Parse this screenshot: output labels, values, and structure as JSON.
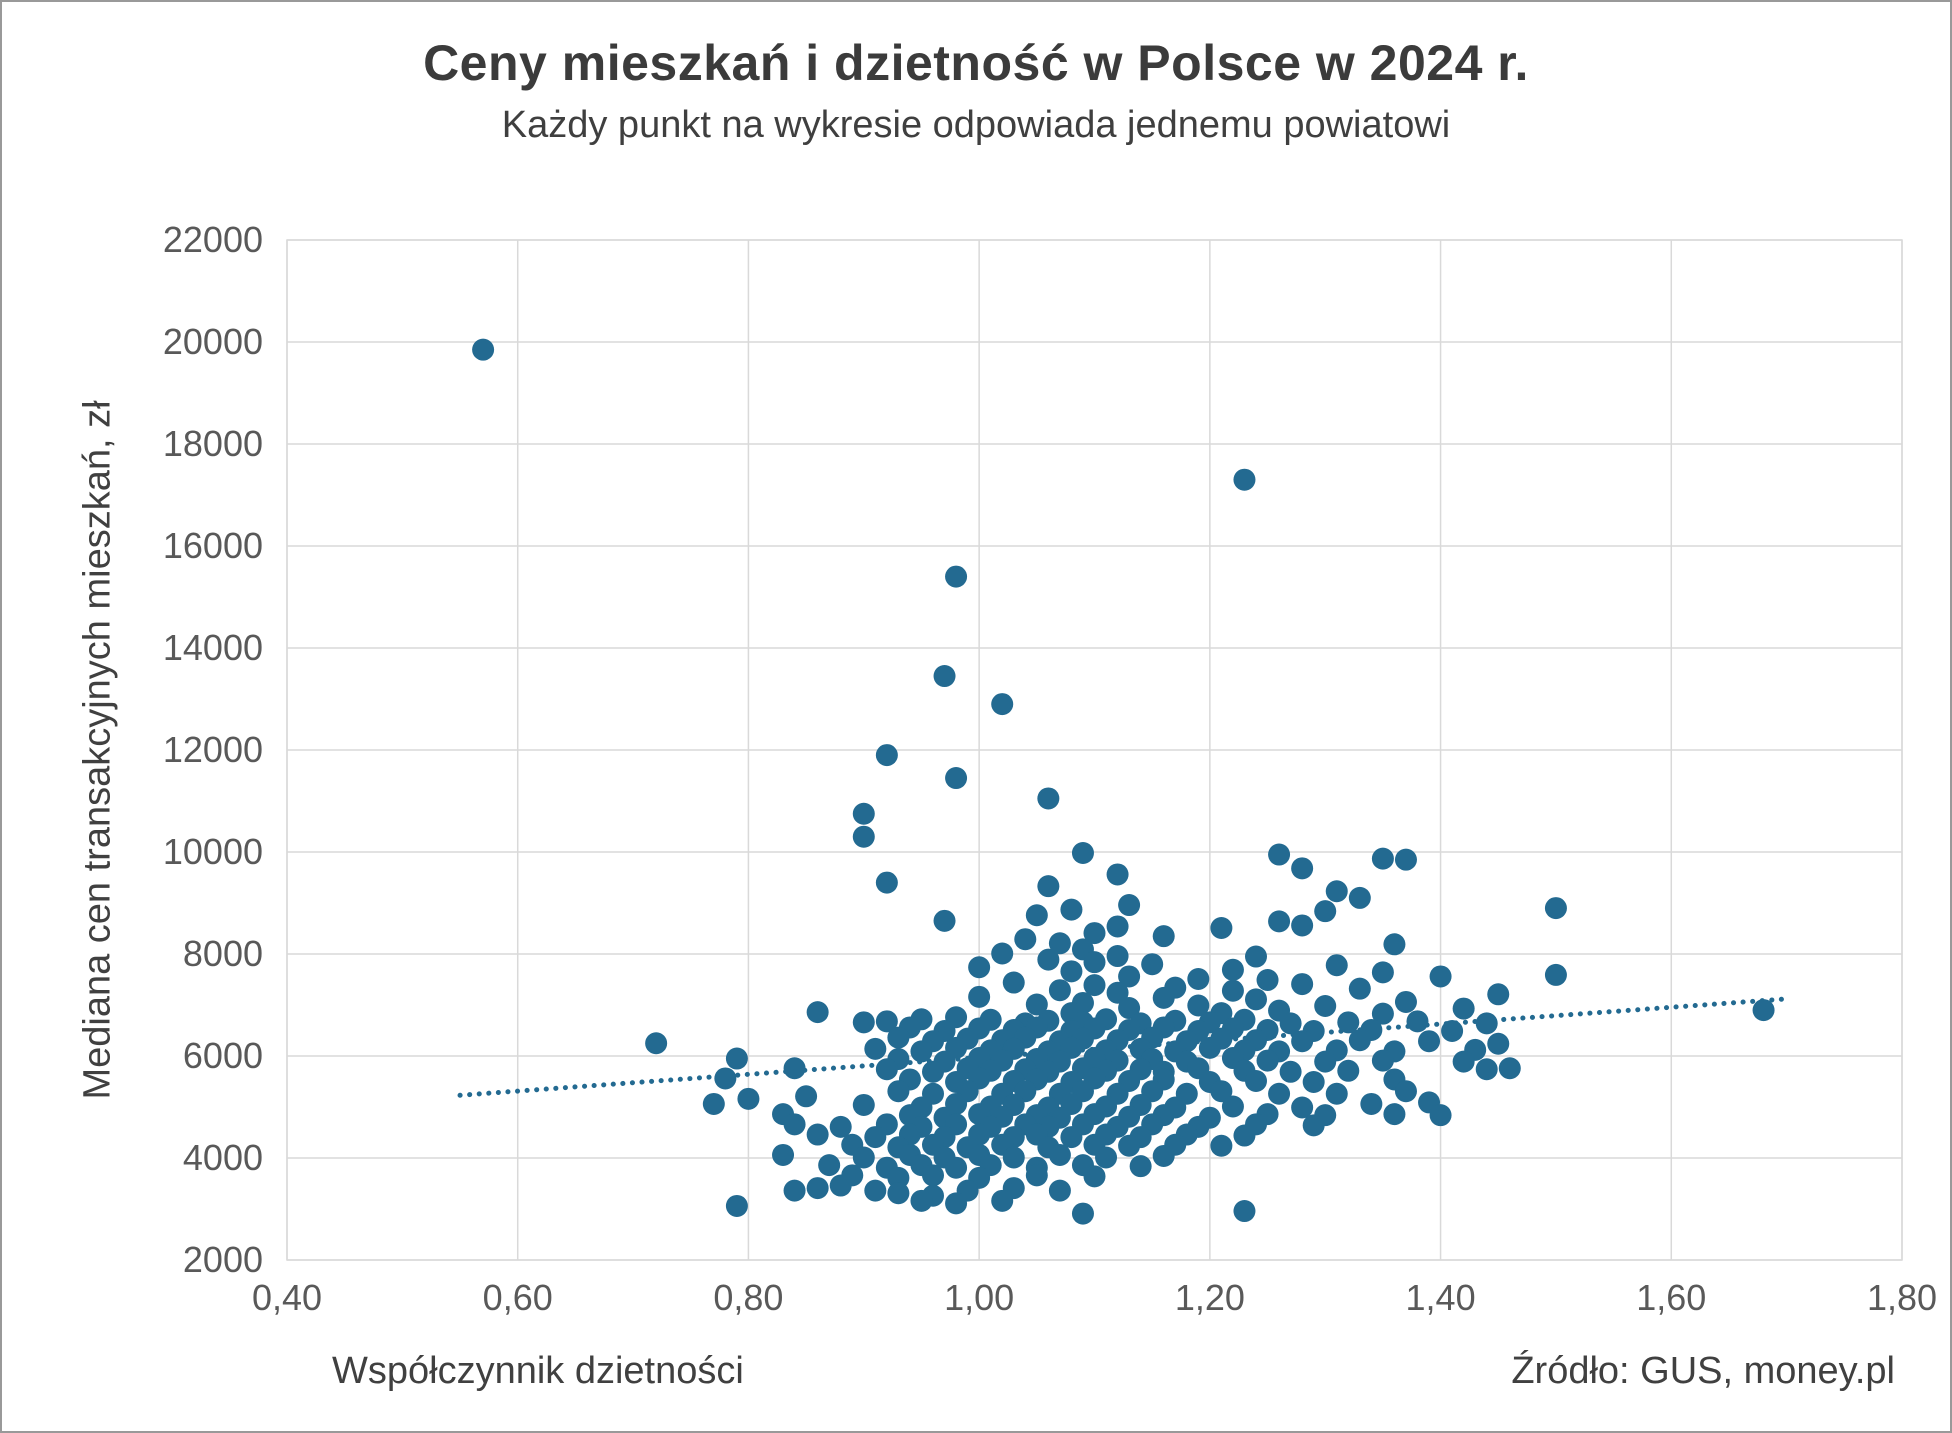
{
  "chart_data": {
    "type": "scatter",
    "title": "Ceny mieszkań i dzietność w Polsce w 2024 r.",
    "subtitle": "Każdy punkt na wykresie odpowiada jednemu powiatowi",
    "xlabel": "Współczynnik dzietności",
    "ylabel": "Mediana cen transakcyjnych mieszkań, zł",
    "source": "Źródło: GUS, money.pl",
    "xlim": [
      0.4,
      1.8
    ],
    "ylim": [
      2000,
      22000
    ],
    "x_ticks": [
      0.4,
      0.6,
      0.8,
      1.0,
      1.2,
      1.4,
      1.6,
      1.8
    ],
    "x_tick_labels": [
      "0,40",
      "0,60",
      "0,80",
      "1,00",
      "1,20",
      "1,40",
      "1,60",
      "1,80"
    ],
    "y_ticks": [
      2000,
      4000,
      6000,
      8000,
      10000,
      12000,
      14000,
      16000,
      18000,
      20000,
      22000
    ],
    "grid": true,
    "legend": false,
    "point_color": "#236a91",
    "grid_color": "#d9d9d9",
    "trendline": {
      "style": "dotted",
      "color": "#236a91",
      "x1": 0.55,
      "y1": 5230,
      "x2": 1.7,
      "y2": 7120
    },
    "points": [
      [
        0.57,
        19850
      ],
      [
        1.23,
        17300
      ],
      [
        0.98,
        15400
      ],
      [
        0.97,
        13450
      ],
      [
        1.02,
        12900
      ],
      [
        0.92,
        11900
      ],
      [
        0.98,
        11450
      ],
      [
        1.06,
        11050
      ],
      [
        0.9,
        10750
      ],
      [
        0.9,
        10300
      ],
      [
        1.09,
        9980
      ],
      [
        1.26,
        9950
      ],
      [
        1.35,
        9870
      ],
      [
        1.37,
        9850
      ],
      [
        1.28,
        9680
      ],
      [
        1.12,
        9560
      ],
      [
        0.92,
        9400
      ],
      [
        1.06,
        9330
      ],
      [
        1.31,
        9230
      ],
      [
        1.33,
        9100
      ],
      [
        1.13,
        8960
      ],
      [
        1.5,
        8900
      ],
      [
        1.08,
        8870
      ],
      [
        1.3,
        8840
      ],
      [
        1.05,
        8760
      ],
      [
        0.97,
        8650
      ],
      [
        1.26,
        8640
      ],
      [
        1.28,
        8560
      ],
      [
        1.12,
        8540
      ],
      [
        1.21,
        8510
      ],
      [
        1.1,
        8410
      ],
      [
        1.16,
        8350
      ],
      [
        1.04,
        8290
      ],
      [
        1.07,
        8210
      ],
      [
        1.36,
        8190
      ],
      [
        1.09,
        8090
      ],
      [
        1.02,
        8010
      ],
      [
        1.12,
        7960
      ],
      [
        1.24,
        7950
      ],
      [
        1.06,
        7890
      ],
      [
        1.1,
        7840
      ],
      [
        1.15,
        7800
      ],
      [
        1.31,
        7780
      ],
      [
        1.0,
        7740
      ],
      [
        1.22,
        7690
      ],
      [
        1.08,
        7660
      ],
      [
        1.35,
        7640
      ],
      [
        1.5,
        7590
      ],
      [
        1.13,
        7560
      ],
      [
        1.4,
        7560
      ],
      [
        1.19,
        7510
      ],
      [
        1.25,
        7490
      ],
      [
        1.03,
        7440
      ],
      [
        1.28,
        7410
      ],
      [
        1.1,
        7390
      ],
      [
        1.17,
        7340
      ],
      [
        1.33,
        7320
      ],
      [
        1.07,
        7290
      ],
      [
        1.22,
        7280
      ],
      [
        1.45,
        7210
      ],
      [
        1.12,
        7240
      ],
      [
        1.0,
        7160
      ],
      [
        1.16,
        7140
      ],
      [
        1.24,
        7110
      ],
      [
        1.37,
        7060
      ],
      [
        1.09,
        7040
      ],
      [
        1.05,
        7010
      ],
      [
        1.19,
        6990
      ],
      [
        1.3,
        6980
      ],
      [
        1.13,
        6940
      ],
      [
        1.42,
        6930
      ],
      [
        1.68,
        6900
      ],
      [
        1.26,
        6890
      ],
      [
        0.86,
        6860
      ],
      [
        1.08,
        6840
      ],
      [
        1.21,
        6840
      ],
      [
        1.35,
        6830
      ],
      [
        0.9,
        6660
      ],
      [
        0.92,
        6680
      ],
      [
        0.95,
        6720
      ],
      [
        0.98,
        6760
      ],
      [
        1.01,
        6710
      ],
      [
        1.04,
        6640
      ],
      [
        1.06,
        6690
      ],
      [
        1.09,
        6660
      ],
      [
        1.11,
        6720
      ],
      [
        1.14,
        6640
      ],
      [
        1.17,
        6690
      ],
      [
        1.2,
        6660
      ],
      [
        1.23,
        6710
      ],
      [
        1.27,
        6640
      ],
      [
        1.32,
        6660
      ],
      [
        1.38,
        6680
      ],
      [
        1.44,
        6640
      ],
      [
        0.94,
        6560
      ],
      [
        0.97,
        6490
      ],
      [
        1.0,
        6540
      ],
      [
        1.03,
        6510
      ],
      [
        1.05,
        6560
      ],
      [
        1.08,
        6490
      ],
      [
        1.1,
        6540
      ],
      [
        1.13,
        6510
      ],
      [
        1.16,
        6560
      ],
      [
        1.19,
        6490
      ],
      [
        1.22,
        6540
      ],
      [
        1.25,
        6510
      ],
      [
        1.29,
        6490
      ],
      [
        1.34,
        6510
      ],
      [
        1.41,
        6490
      ],
      [
        0.72,
        6250
      ],
      [
        0.93,
        6360
      ],
      [
        0.96,
        6290
      ],
      [
        0.99,
        6340
      ],
      [
        1.02,
        6310
      ],
      [
        1.04,
        6360
      ],
      [
        1.07,
        6290
      ],
      [
        1.09,
        6340
      ],
      [
        1.12,
        6310
      ],
      [
        1.15,
        6360
      ],
      [
        1.18,
        6290
      ],
      [
        1.21,
        6340
      ],
      [
        1.24,
        6310
      ],
      [
        1.28,
        6290
      ],
      [
        1.33,
        6310
      ],
      [
        1.39,
        6290
      ],
      [
        1.45,
        6240
      ],
      [
        0.91,
        6140
      ],
      [
        0.95,
        6090
      ],
      [
        0.98,
        6160
      ],
      [
        1.01,
        6110
      ],
      [
        1.03,
        6140
      ],
      [
        1.06,
        6090
      ],
      [
        1.08,
        6160
      ],
      [
        1.11,
        6110
      ],
      [
        1.14,
        6140
      ],
      [
        1.17,
        6090
      ],
      [
        1.2,
        6160
      ],
      [
        1.23,
        6110
      ],
      [
        1.26,
        6090
      ],
      [
        1.31,
        6110
      ],
      [
        1.36,
        6090
      ],
      [
        1.43,
        6120
      ],
      [
        0.79,
        5950
      ],
      [
        0.93,
        5940
      ],
      [
        0.97,
        5890
      ],
      [
        1.0,
        5960
      ],
      [
        1.02,
        5910
      ],
      [
        1.05,
        5940
      ],
      [
        1.07,
        5890
      ],
      [
        1.1,
        5960
      ],
      [
        1.12,
        5910
      ],
      [
        1.15,
        5940
      ],
      [
        1.18,
        5890
      ],
      [
        1.22,
        5960
      ],
      [
        1.25,
        5910
      ],
      [
        1.3,
        5890
      ],
      [
        1.35,
        5910
      ],
      [
        1.42,
        5890
      ],
      [
        0.84,
        5760
      ],
      [
        0.92,
        5740
      ],
      [
        0.96,
        5690
      ],
      [
        0.99,
        5760
      ],
      [
        1.01,
        5710
      ],
      [
        1.04,
        5740
      ],
      [
        1.06,
        5690
      ],
      [
        1.09,
        5760
      ],
      [
        1.11,
        5710
      ],
      [
        1.14,
        5740
      ],
      [
        1.16,
        5690
      ],
      [
        1.19,
        5760
      ],
      [
        1.23,
        5710
      ],
      [
        1.27,
        5690
      ],
      [
        1.32,
        5710
      ],
      [
        1.44,
        5740
      ],
      [
        1.46,
        5760
      ],
      [
        0.78,
        5560
      ],
      [
        0.94,
        5540
      ],
      [
        0.98,
        5490
      ],
      [
        1.0,
        5560
      ],
      [
        1.03,
        5510
      ],
      [
        1.05,
        5540
      ],
      [
        1.08,
        5490
      ],
      [
        1.1,
        5560
      ],
      [
        1.13,
        5510
      ],
      [
        1.16,
        5540
      ],
      [
        1.2,
        5490
      ],
      [
        1.24,
        5510
      ],
      [
        1.29,
        5490
      ],
      [
        1.36,
        5540
      ],
      [
        0.8,
        5160
      ],
      [
        0.85,
        5210
      ],
      [
        0.93,
        5310
      ],
      [
        0.96,
        5260
      ],
      [
        0.99,
        5310
      ],
      [
        1.02,
        5260
      ],
      [
        1.04,
        5310
      ],
      [
        1.07,
        5260
      ],
      [
        1.09,
        5310
      ],
      [
        1.12,
        5260
      ],
      [
        1.15,
        5310
      ],
      [
        1.18,
        5260
      ],
      [
        1.21,
        5310
      ],
      [
        1.26,
        5260
      ],
      [
        1.31,
        5260
      ],
      [
        1.37,
        5310
      ],
      [
        0.77,
        5060
      ],
      [
        0.9,
        5040
      ],
      [
        0.95,
        4990
      ],
      [
        0.98,
        5060
      ],
      [
        1.01,
        5010
      ],
      [
        1.03,
        5040
      ],
      [
        1.06,
        4990
      ],
      [
        1.08,
        5060
      ],
      [
        1.11,
        5010
      ],
      [
        1.14,
        5040
      ],
      [
        1.17,
        4990
      ],
      [
        1.22,
        5010
      ],
      [
        1.28,
        4990
      ],
      [
        1.34,
        5060
      ],
      [
        1.39,
        5090
      ],
      [
        0.83,
        4860
      ],
      [
        0.94,
        4840
      ],
      [
        0.97,
        4790
      ],
      [
        1.0,
        4860
      ],
      [
        1.02,
        4810
      ],
      [
        1.05,
        4840
      ],
      [
        1.07,
        4790
      ],
      [
        1.1,
        4860
      ],
      [
        1.13,
        4810
      ],
      [
        1.16,
        4840
      ],
      [
        1.2,
        4790
      ],
      [
        1.25,
        4860
      ],
      [
        1.3,
        4840
      ],
      [
        1.36,
        4860
      ],
      [
        1.4,
        4840
      ],
      [
        0.84,
        4660
      ],
      [
        0.88,
        4610
      ],
      [
        0.92,
        4660
      ],
      [
        0.95,
        4610
      ],
      [
        0.98,
        4660
      ],
      [
        1.01,
        4610
      ],
      [
        1.04,
        4660
      ],
      [
        1.06,
        4610
      ],
      [
        1.09,
        4660
      ],
      [
        1.12,
        4610
      ],
      [
        1.15,
        4660
      ],
      [
        1.19,
        4610
      ],
      [
        1.24,
        4660
      ],
      [
        1.29,
        4640
      ],
      [
        0.86,
        4460
      ],
      [
        0.91,
        4410
      ],
      [
        0.94,
        4460
      ],
      [
        0.97,
        4410
      ],
      [
        1.0,
        4460
      ],
      [
        1.03,
        4410
      ],
      [
        1.05,
        4460
      ],
      [
        1.08,
        4410
      ],
      [
        1.11,
        4460
      ],
      [
        1.14,
        4410
      ],
      [
        1.18,
        4460
      ],
      [
        1.23,
        4440
      ],
      [
        0.89,
        4260
      ],
      [
        0.93,
        4210
      ],
      [
        0.96,
        4260
      ],
      [
        0.99,
        4210
      ],
      [
        1.02,
        4260
      ],
      [
        1.06,
        4210
      ],
      [
        1.1,
        4260
      ],
      [
        1.13,
        4240
      ],
      [
        1.17,
        4260
      ],
      [
        1.21,
        4240
      ],
      [
        0.83,
        4060
      ],
      [
        0.9,
        4010
      ],
      [
        0.94,
        4060
      ],
      [
        0.97,
        4010
      ],
      [
        1.0,
        4060
      ],
      [
        1.03,
        4010
      ],
      [
        1.07,
        4060
      ],
      [
        1.11,
        4010
      ],
      [
        1.16,
        4040
      ],
      [
        0.87,
        3860
      ],
      [
        0.92,
        3810
      ],
      [
        0.95,
        3860
      ],
      [
        0.98,
        3810
      ],
      [
        1.01,
        3860
      ],
      [
        1.05,
        3810
      ],
      [
        1.09,
        3860
      ],
      [
        1.14,
        3840
      ],
      [
        0.89,
        3660
      ],
      [
        0.93,
        3610
      ],
      [
        0.96,
        3660
      ],
      [
        1.0,
        3610
      ],
      [
        1.05,
        3660
      ],
      [
        1.1,
        3640
      ],
      [
        0.84,
        3360
      ],
      [
        0.86,
        3410
      ],
      [
        0.88,
        3460
      ],
      [
        0.91,
        3360
      ],
      [
        0.93,
        3310
      ],
      [
        0.96,
        3260
      ],
      [
        0.99,
        3360
      ],
      [
        1.03,
        3410
      ],
      [
        1.07,
        3360
      ],
      [
        0.95,
        3160
      ],
      [
        0.98,
        3110
      ],
      [
        1.02,
        3160
      ],
      [
        0.79,
        3060
      ],
      [
        1.09,
        2910
      ],
      [
        1.23,
        2960
      ]
    ]
  }
}
